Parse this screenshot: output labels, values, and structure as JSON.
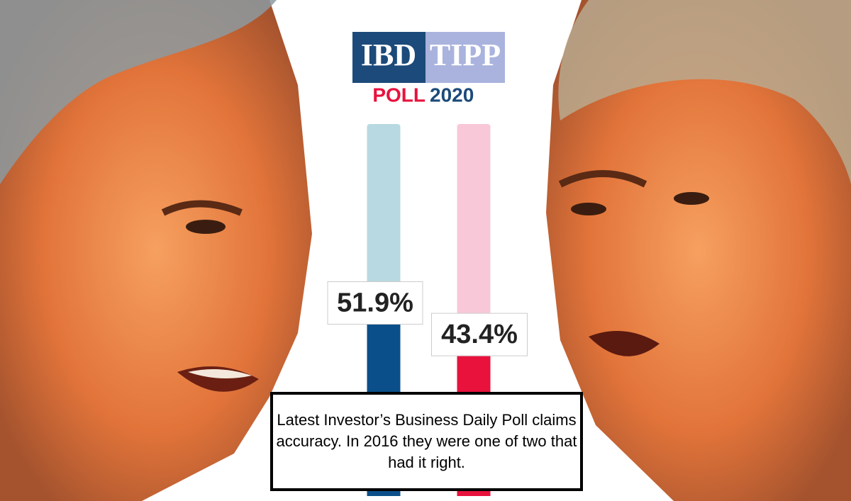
{
  "chart_data": {
    "type": "bar",
    "logo": {
      "left": "IBD",
      "right": "TIPP",
      "word": "POLL",
      "year": "2020"
    },
    "categories": [
      null,
      null
    ],
    "values": [
      51.9,
      43.4
    ],
    "value_labels": [
      "51.9%",
      "43.4%"
    ],
    "colors": [
      "#0b4f8a",
      "#e8123c"
    ],
    "track_colors": [
      "#b8d9e1",
      "#f9c8d8"
    ],
    "ylim": [
      0,
      100
    ],
    "caption": "Latest Investor’s Business Daily Poll claims accuracy. In 2016 they were one of two that had it right."
  }
}
